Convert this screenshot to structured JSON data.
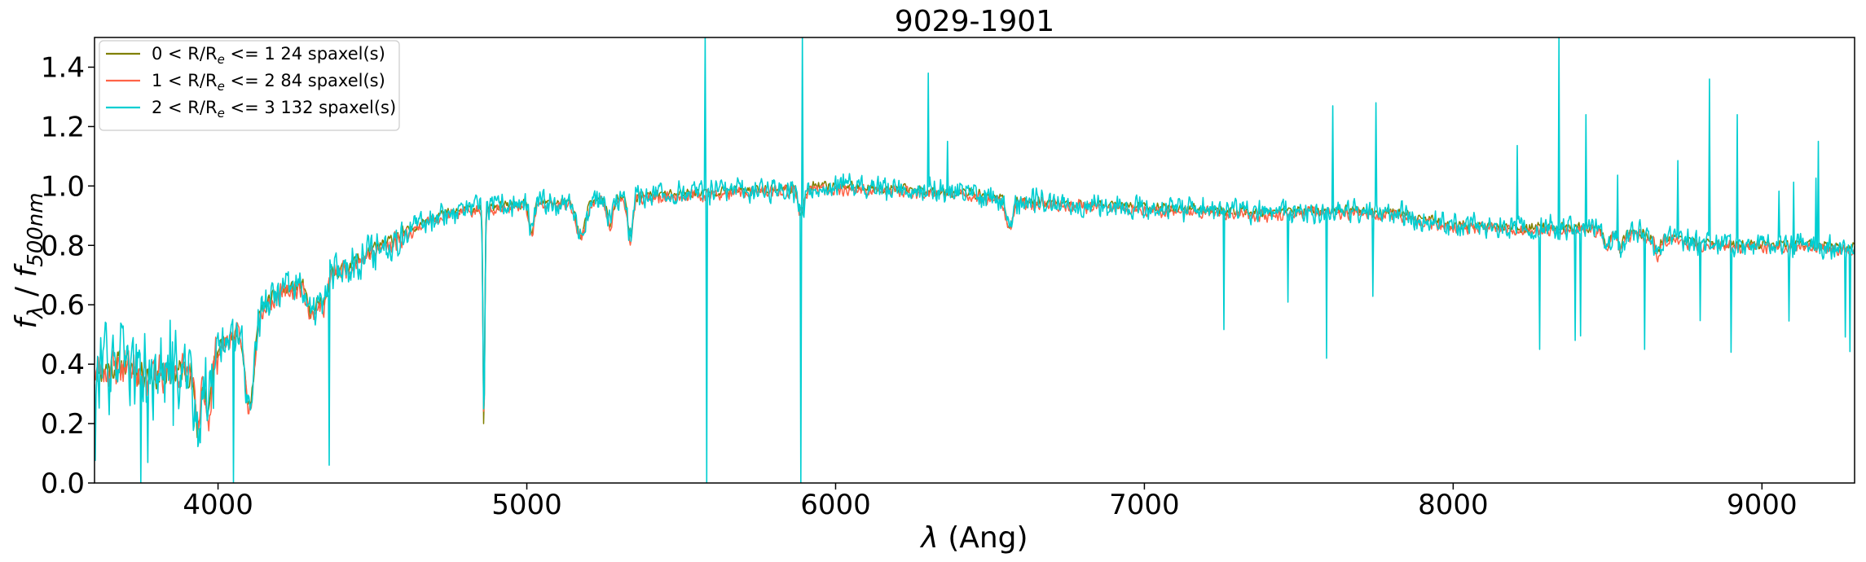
{
  "chart_data": {
    "type": "line",
    "title": "9029-1901",
    "xlabel_symbol": "λ",
    "xlabel_unit": "(Ang)",
    "ylabel_f": "f",
    "ylabel_f_sub": "λ",
    "ylabel_sep": " / ",
    "ylabel_norm": "f",
    "ylabel_norm_sub": "500nm",
    "xlim": [
      3600,
      9300
    ],
    "ylim": [
      0.0,
      1.5
    ],
    "x_ticks": [
      4000,
      5000,
      6000,
      7000,
      8000,
      9000
    ],
    "x_tick_labels": [
      "4000",
      "5000",
      "6000",
      "7000",
      "8000",
      "9000"
    ],
    "y_ticks": [
      0.0,
      0.2,
      0.4,
      0.6,
      0.8,
      1.0,
      1.2,
      1.4
    ],
    "y_tick_labels": [
      "0.0",
      "0.2",
      "0.4",
      "0.6",
      "0.8",
      "1.0",
      "1.2",
      "1.4"
    ],
    "grid": false,
    "legend_position": "top-left",
    "continuum": {
      "x": [
        3600,
        3700,
        3800,
        3900,
        4000,
        4100,
        4200,
        4300,
        4400,
        4500,
        4600,
        4700,
        4800,
        4900,
        5000,
        5200,
        5400,
        5600,
        5800,
        6000,
        6200,
        6400,
        6600,
        6800,
        7000,
        7200,
        7400,
        7600,
        7800,
        8000,
        8200,
        8400,
        8600,
        8800,
        9000,
        9200,
        9300
      ],
      "y": [
        0.38,
        0.4,
        0.36,
        0.38,
        0.45,
        0.55,
        0.64,
        0.68,
        0.72,
        0.78,
        0.84,
        0.9,
        0.92,
        0.93,
        0.94,
        0.95,
        0.97,
        0.98,
        0.99,
        1.0,
        0.99,
        0.98,
        0.95,
        0.94,
        0.93,
        0.92,
        0.91,
        0.92,
        0.91,
        0.87,
        0.86,
        0.86,
        0.84,
        0.81,
        0.8,
        0.8,
        0.79
      ]
    },
    "features": [
      {
        "x": 3934,
        "depth": 0.22,
        "width": 10
      },
      {
        "x": 3969,
        "depth": 0.2,
        "width": 10
      },
      {
        "x": 4102,
        "depth": 0.3,
        "width": 14
      },
      {
        "x": 4304,
        "depth": 0.12,
        "width": 14
      },
      {
        "x": 4340,
        "depth": 0.1,
        "width": 12
      },
      {
        "x": 4861,
        "depth": 0.7,
        "width": 3
      },
      {
        "x": 5015,
        "depth": 0.1,
        "width": 8
      },
      {
        "x": 5175,
        "depth": 0.12,
        "width": 14
      },
      {
        "x": 5270,
        "depth": 0.08,
        "width": 10
      },
      {
        "x": 5335,
        "depth": 0.14,
        "width": 8
      },
      {
        "x": 5890,
        "depth": 0.08,
        "width": 10
      },
      {
        "x": 6563,
        "depth": 0.1,
        "width": 10
      },
      {
        "x": 8498,
        "depth": 0.06,
        "width": 8
      },
      {
        "x": 8542,
        "depth": 0.06,
        "width": 8
      },
      {
        "x": 8662,
        "depth": 0.06,
        "width": 8
      }
    ],
    "series": [
      {
        "name": "0 < R/R<sub>e</sub> <= 1 24 spaxel(s)",
        "label_main": "0 < R/R",
        "label_sub": "e",
        "label_rest": " <= 1 24 spaxel(s)",
        "color": "#808000",
        "noise": 0.02,
        "seed": 11,
        "scale": 1.0
      },
      {
        "name": "1 < R/R<sub>e</sub> <= 2 84 spaxel(s)",
        "label_main": "1 < R/R",
        "label_sub": "e",
        "label_rest": " <= 2 84 spaxel(s)",
        "color": "#FF6347",
        "noise": 0.025,
        "seed": 23,
        "scale": 0.99
      },
      {
        "name": "2 < R/R<sub>e</sub> <= 3 132 spaxel(s)",
        "label_main": "2 < R/R",
        "label_sub": "e",
        "label_rest": " <= 3 132 spaxel(s)",
        "color": "#00CED1",
        "noise": 0.05,
        "seed": 37,
        "scale": 1.0
      }
    ],
    "spikes": [
      {
        "x": 5577,
        "y": 1.5
      },
      {
        "x": 5582,
        "y": 0.0
      },
      {
        "x": 5893,
        "y": 1.5
      },
      {
        "x": 5888,
        "y": 0.0
      },
      {
        "x": 6300,
        "y": 1.38
      },
      {
        "x": 6363,
        "y": 1.15
      },
      {
        "x": 7750,
        "y": 1.28
      },
      {
        "x": 7610,
        "y": 1.27
      },
      {
        "x": 8343,
        "y": 1.5
      },
      {
        "x": 8430,
        "y": 1.24
      },
      {
        "x": 8830,
        "y": 1.36
      },
      {
        "x": 8920,
        "y": 1.24
      },
      {
        "x": 8280,
        "y": 0.45
      },
      {
        "x": 7590,
        "y": 0.42
      },
      {
        "x": 8620,
        "y": 0.45
      },
      {
        "x": 8900,
        "y": 0.44
      },
      {
        "x": 4050,
        "y": 0.0
      },
      {
        "x": 4360,
        "y": 0.06
      },
      {
        "x": 3750,
        "y": 0.0
      }
    ]
  }
}
